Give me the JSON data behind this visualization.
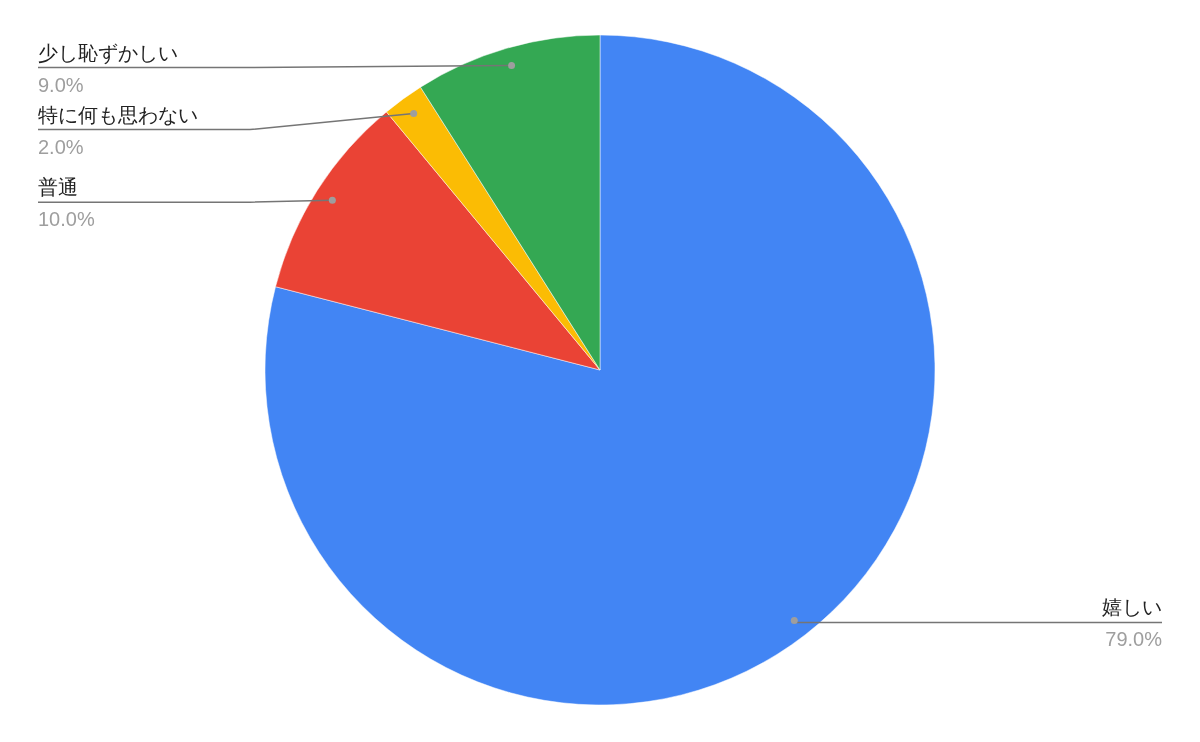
{
  "chart_data": {
    "type": "pie",
    "categories": [
      "嬉しい",
      "普通",
      "特に何も思わない",
      "少し恥ずかしい"
    ],
    "values": [
      79,
      10,
      2,
      9
    ],
    "colors": [
      "#4285f4",
      "#ea4335",
      "#fbbc04",
      "#34a853"
    ],
    "value_labels": [
      "79.0%",
      "10.0%",
      "2.0%",
      "9.0%"
    ]
  }
}
